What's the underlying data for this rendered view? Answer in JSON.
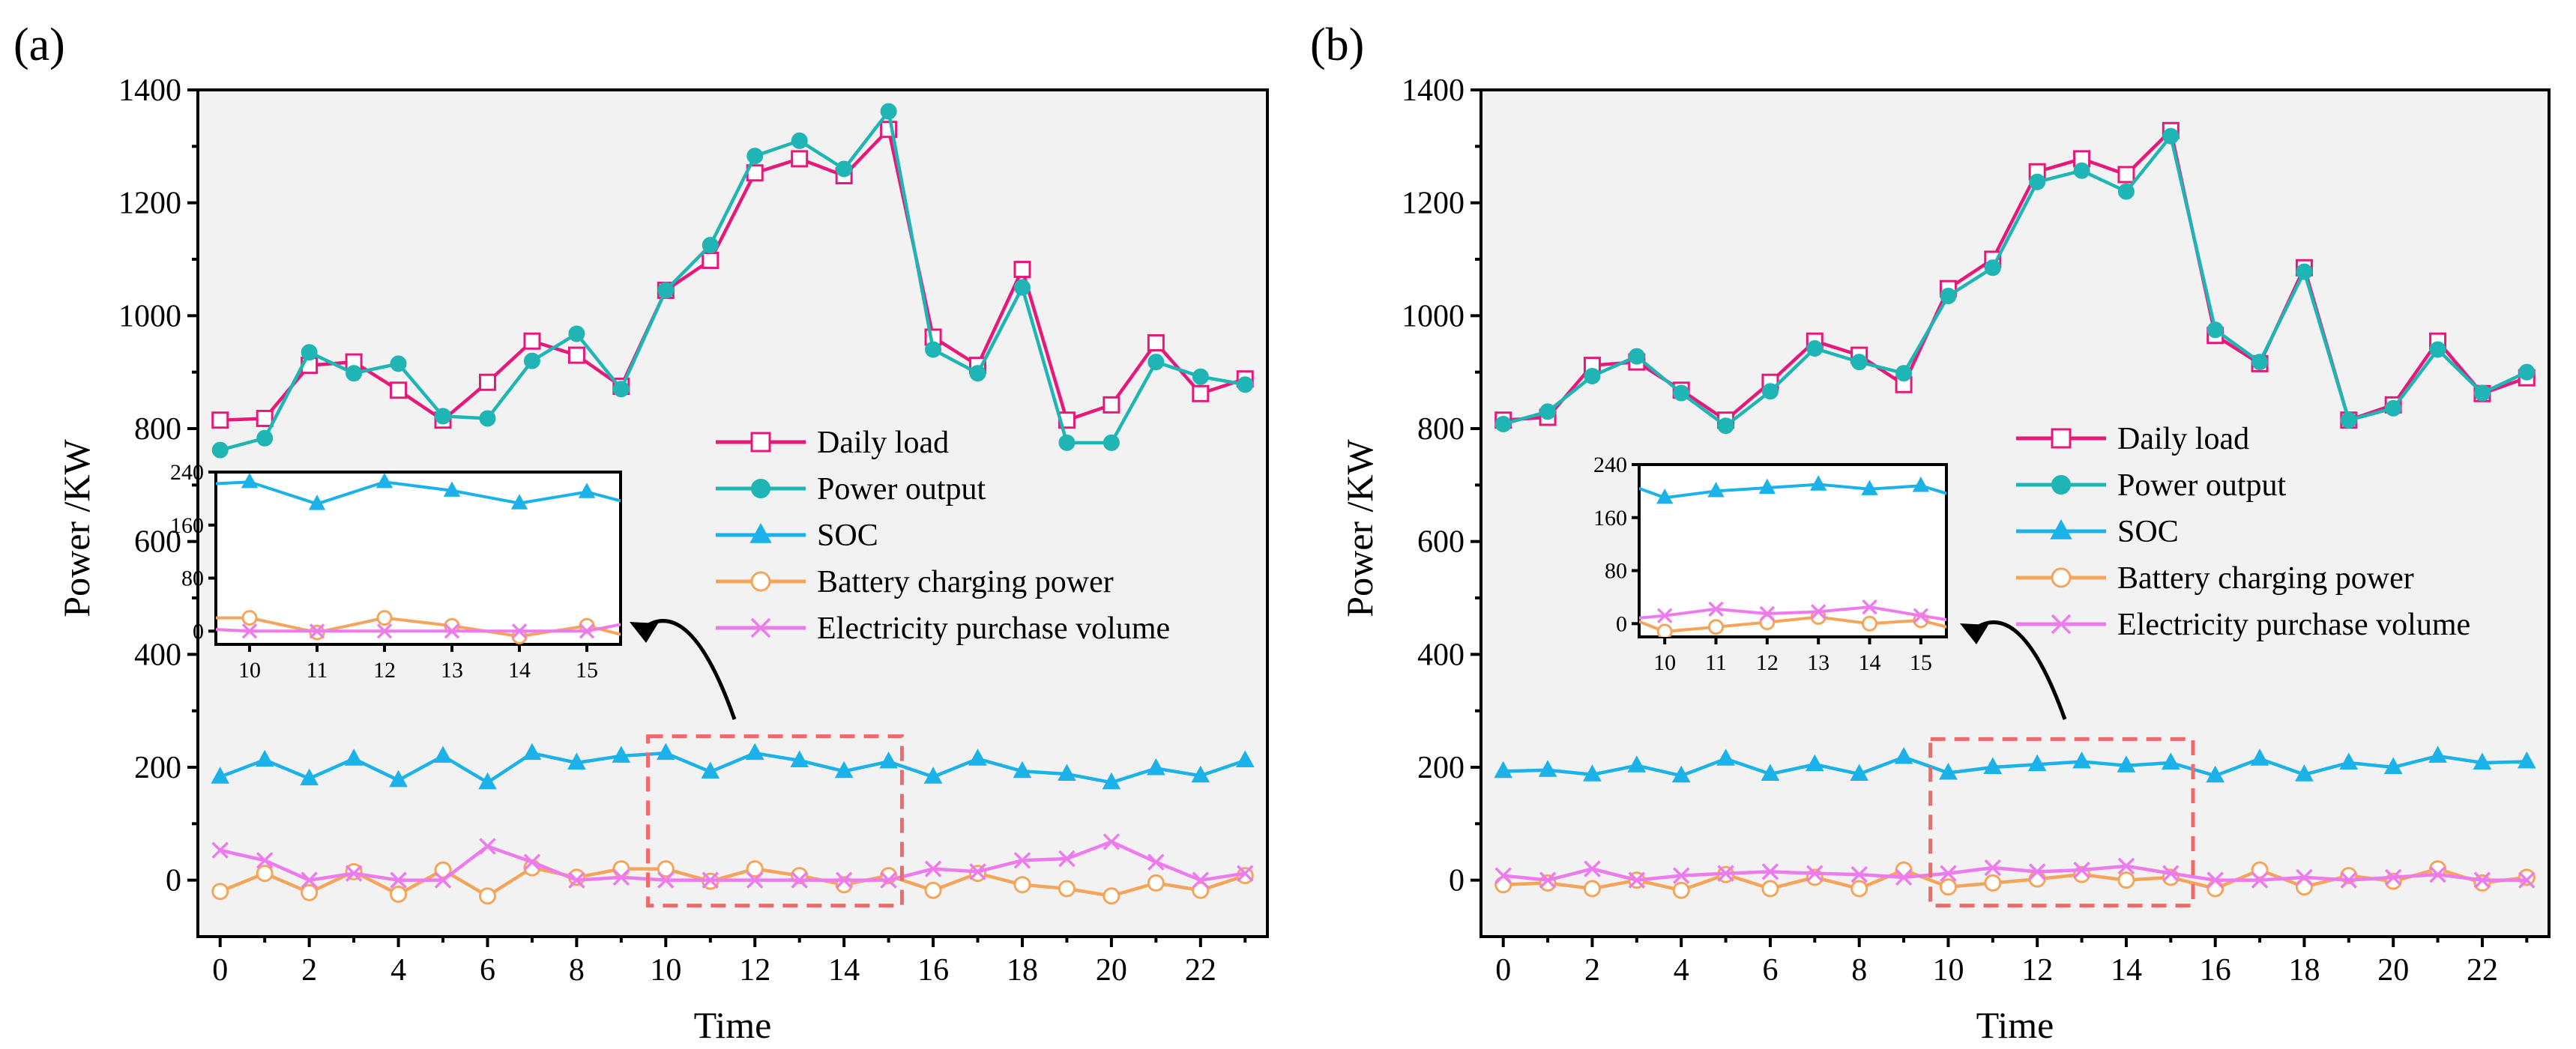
{
  "chart_data": [
    {
      "panel_label": "(a)",
      "type": "line",
      "xlabel": "Time",
      "ylabel": "Power /KW",
      "xlim": [
        -0.5,
        23.5
      ],
      "ylim": [
        -100,
        1400
      ],
      "xticks": [
        0,
        2,
        4,
        6,
        8,
        10,
        12,
        14,
        16,
        18,
        20,
        22
      ],
      "yticks": [
        0,
        200,
        400,
        600,
        800,
        1000,
        1200,
        1400
      ],
      "x": [
        0,
        1,
        2,
        3,
        4,
        5,
        6,
        7,
        8,
        9,
        10,
        11,
        12,
        13,
        14,
        15,
        16,
        17,
        18,
        19,
        20,
        21,
        22,
        23
      ],
      "series": [
        {
          "name": "Daily load",
          "color": "#e6197a",
          "marker": "square-open",
          "values": [
            815,
            818,
            912,
            918,
            868,
            815,
            882,
            955,
            930,
            875,
            1045,
            1098,
            1253,
            1278,
            1248,
            1330,
            962,
            912,
            1082,
            815,
            842,
            952,
            862,
            888
          ]
        },
        {
          "name": "Power output",
          "color": "#1fb5b5",
          "marker": "circle-filled",
          "values": [
            762,
            783,
            935,
            898,
            915,
            822,
            818,
            920,
            968,
            870,
            1045,
            1125,
            1283,
            1310,
            1260,
            1362,
            940,
            898,
            1050,
            775,
            775,
            918,
            892,
            878
          ]
        },
        {
          "name": "SOC",
          "color": "#1ab2e8",
          "marker": "triangle-filled",
          "values": [
            183,
            213,
            180,
            215,
            177,
            220,
            173,
            225,
            208,
            220,
            225,
            192,
            225,
            212,
            193,
            210,
            183,
            215,
            193,
            188,
            173,
            198,
            185,
            212
          ]
        },
        {
          "name": "Battery charging power",
          "color": "#f5a55a",
          "marker": "circle-open",
          "values": [
            -20,
            12,
            -22,
            15,
            -25,
            18,
            -28,
            22,
            5,
            20,
            20,
            -2,
            20,
            8,
            -8,
            8,
            -18,
            12,
            -8,
            -15,
            -28,
            -5,
            -18,
            8
          ]
        },
        {
          "name": "Electricity purchase volume",
          "color": "#ee7bee",
          "marker": "x",
          "values": [
            53,
            35,
            0,
            12,
            0,
            0,
            60,
            32,
            0,
            5,
            0,
            0,
            0,
            0,
            0,
            0,
            20,
            15,
            35,
            38,
            68,
            32,
            0,
            12
          ]
        }
      ],
      "inset": {
        "xlim": [
          9.5,
          15.5
        ],
        "ylim": [
          -20,
          240
        ],
        "xticks": [
          10,
          11,
          12,
          13,
          14,
          15
        ],
        "yticks": [
          0,
          80,
          160,
          240
        ]
      },
      "legend_position": "center-right"
    },
    {
      "panel_label": "(b)",
      "type": "line",
      "xlabel": "Time",
      "ylabel": "Power /KW",
      "xlim": [
        -0.5,
        23.5
      ],
      "ylim": [
        -100,
        1400
      ],
      "xticks": [
        0,
        2,
        4,
        6,
        8,
        10,
        12,
        14,
        16,
        18,
        20,
        22
      ],
      "yticks": [
        0,
        200,
        400,
        600,
        800,
        1000,
        1200,
        1400
      ],
      "x": [
        0,
        1,
        2,
        3,
        4,
        5,
        6,
        7,
        8,
        9,
        10,
        11,
        12,
        13,
        14,
        15,
        16,
        17,
        18,
        19,
        20,
        21,
        22,
        23
      ],
      "series": [
        {
          "name": "Daily load",
          "color": "#e6197a",
          "marker": "square-open",
          "values": [
            815,
            820,
            912,
            918,
            868,
            815,
            882,
            955,
            930,
            878,
            1048,
            1100,
            1255,
            1278,
            1250,
            1328,
            965,
            915,
            1085,
            815,
            842,
            955,
            862,
            890
          ]
        },
        {
          "name": "Power output",
          "color": "#1fb5b5",
          "marker": "circle-filled",
          "values": [
            808,
            830,
            893,
            928,
            863,
            805,
            866,
            942,
            918,
            898,
            1035,
            1085,
            1237,
            1257,
            1220,
            1318,
            975,
            918,
            1078,
            815,
            836,
            940,
            863,
            900
          ]
        },
        {
          "name": "SOC",
          "color": "#1ab2e8",
          "marker": "triangle-filled",
          "values": [
            193,
            195,
            187,
            203,
            185,
            215,
            188,
            205,
            188,
            218,
            190,
            200,
            205,
            210,
            203,
            208,
            185,
            215,
            187,
            208,
            200,
            220,
            208,
            210
          ]
        },
        {
          "name": "Battery charging power",
          "color": "#f5a55a",
          "marker": "circle-open",
          "values": [
            -8,
            -5,
            -15,
            0,
            -18,
            10,
            -15,
            5,
            -15,
            18,
            -12,
            -5,
            2,
            10,
            0,
            5,
            -15,
            18,
            -12,
            8,
            -2,
            20,
            -5,
            5
          ]
        },
        {
          "name": "Electricity purchase volume",
          "color": "#ee7bee",
          "marker": "x",
          "values": [
            8,
            0,
            20,
            0,
            8,
            12,
            15,
            12,
            10,
            5,
            12,
            22,
            15,
            18,
            25,
            12,
            0,
            0,
            5,
            0,
            5,
            10,
            0,
            0
          ]
        }
      ],
      "inset": {
        "xlim": [
          9.5,
          15.5
        ],
        "ylim": [
          -20,
          240
        ],
        "xticks": [
          10,
          11,
          12,
          13,
          14,
          15
        ],
        "yticks": [
          0,
          80,
          160,
          240
        ]
      },
      "legend_position": "center-right"
    }
  ]
}
